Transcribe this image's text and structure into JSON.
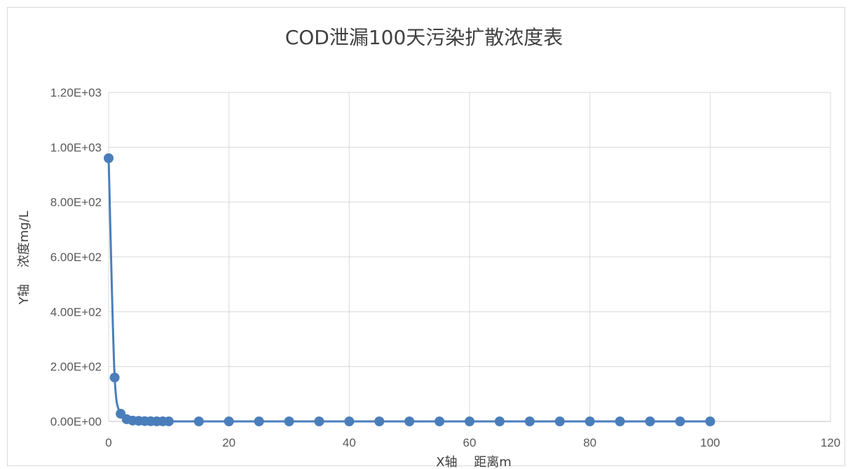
{
  "chart_data": {
    "type": "scatter",
    "title": "COD泄漏100天污染扩散浓度表",
    "xlabel": "X轴　 距离m",
    "ylabel": "Y轴　 浓度mg/L",
    "xlim": [
      0,
      120
    ],
    "ylim": [
      0,
      1200
    ],
    "x_ticks": [
      0,
      20,
      40,
      60,
      80,
      100,
      120
    ],
    "y_ticks": [
      0,
      200,
      400,
      600,
      800,
      1000,
      1200
    ],
    "x_tick_labels": [
      "0",
      "20",
      "40",
      "60",
      "80",
      "100",
      "120"
    ],
    "y_tick_labels": [
      "0.00E+00",
      "2.00E+02",
      "4.00E+02",
      "6.00E+02",
      "8.00E+02",
      "1.00E+03",
      "1.20E+03"
    ],
    "grid": true,
    "legend": "none",
    "series": [
      {
        "color": "#4a7ebb",
        "marker": "circle",
        "line": "smooth",
        "x": [
          0,
          1,
          2,
          3,
          4,
          5,
          6,
          7,
          8,
          9,
          10,
          15,
          20,
          25,
          30,
          35,
          40,
          45,
          50,
          55,
          60,
          65,
          70,
          75,
          80,
          85,
          90,
          95,
          100
        ],
        "y": [
          960,
          160,
          28,
          8,
          3,
          2,
          1,
          0.5,
          0.3,
          0.2,
          0.1,
          0,
          0,
          0,
          0,
          0,
          0,
          0,
          0,
          0,
          0,
          0,
          0,
          0,
          0,
          0,
          0,
          0,
          0
        ]
      }
    ]
  }
}
